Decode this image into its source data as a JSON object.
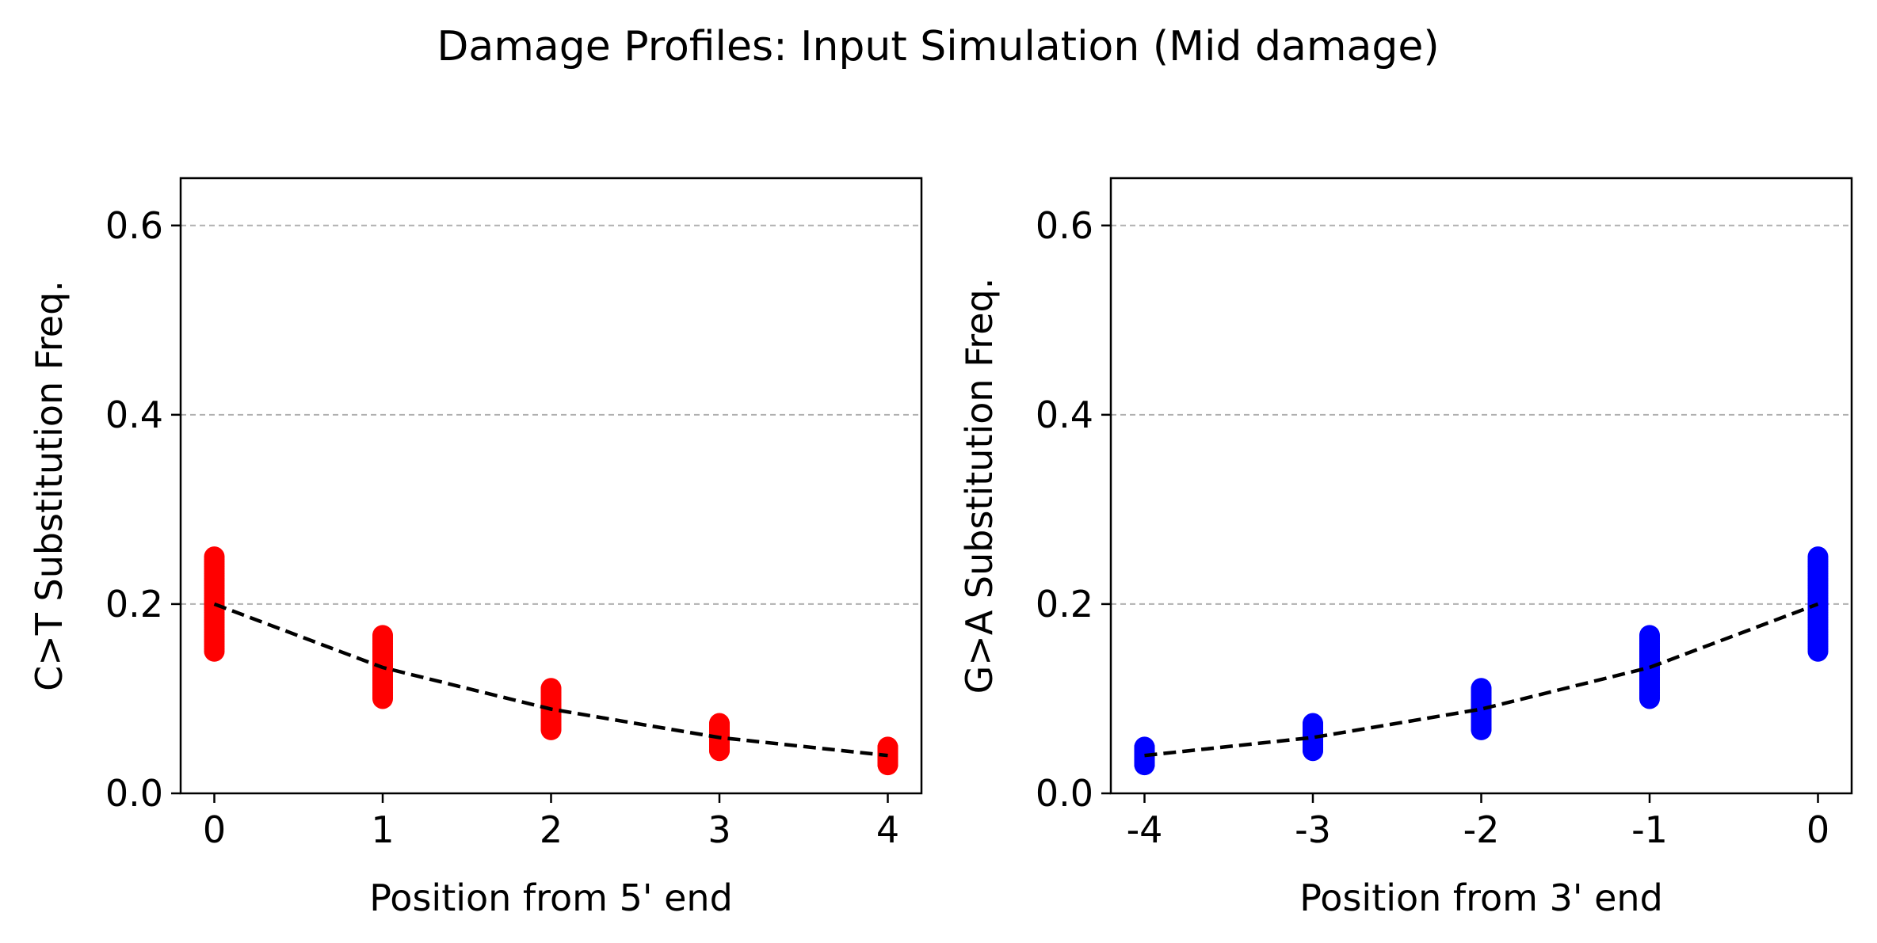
{
  "figure": {
    "title": "Damage Profiles: Input Simulation (Mid damage)"
  },
  "chart_data": [
    {
      "type": "scatter",
      "panel": "left",
      "xlabel": "Position from 5' end",
      "ylabel": "C>T Substitution Freq.",
      "xlim": [
        -0.2,
        4.2
      ],
      "ylim": [
        0.0,
        0.65
      ],
      "x_ticks": [
        0,
        1,
        2,
        3,
        4
      ],
      "x_tick_labels": [
        "0",
        "1",
        "2",
        "3",
        "4"
      ],
      "y_ticks": [
        0.0,
        0.2,
        0.4,
        0.6
      ],
      "y_tick_labels": [
        "0.0",
        "0.2",
        "0.4",
        "0.6"
      ],
      "grid": "y-dashed",
      "point_color": "#ff0000",
      "line_color": "#000000",
      "scatter_ranges": [
        {
          "x": 0,
          "y_min": 0.15,
          "y_max": 0.25
        },
        {
          "x": 1,
          "y_min": 0.1,
          "y_max": 0.167
        },
        {
          "x": 2,
          "y_min": 0.067,
          "y_max": 0.111
        },
        {
          "x": 3,
          "y_min": 0.045,
          "y_max": 0.074
        },
        {
          "x": 4,
          "y_min": 0.03,
          "y_max": 0.049
        }
      ],
      "expected_line": {
        "style": "dashed",
        "x": [
          0,
          1,
          2,
          3,
          4
        ],
        "y": [
          0.2,
          0.133,
          0.089,
          0.059,
          0.04
        ]
      }
    },
    {
      "type": "scatter",
      "panel": "right",
      "xlabel": "Position from 3' end",
      "ylabel": "G>A Substitution Freq.",
      "xlim": [
        -4.2,
        0.2
      ],
      "ylim": [
        0.0,
        0.65
      ],
      "x_ticks": [
        -4,
        -3,
        -2,
        -1,
        0
      ],
      "x_tick_labels": [
        "-4",
        "-3",
        "-2",
        "-1",
        "0"
      ],
      "y_ticks": [
        0.0,
        0.2,
        0.4,
        0.6
      ],
      "y_tick_labels": [
        "0.0",
        "0.2",
        "0.4",
        "0.6"
      ],
      "grid": "y-dashed",
      "point_color": "#0000ff",
      "line_color": "#000000",
      "scatter_ranges": [
        {
          "x": -4,
          "y_min": 0.03,
          "y_max": 0.049
        },
        {
          "x": -3,
          "y_min": 0.045,
          "y_max": 0.074
        },
        {
          "x": -2,
          "y_min": 0.067,
          "y_max": 0.111
        },
        {
          "x": -1,
          "y_min": 0.1,
          "y_max": 0.167
        },
        {
          "x": 0,
          "y_min": 0.15,
          "y_max": 0.25
        }
      ],
      "expected_line": {
        "style": "dashed",
        "x": [
          -4,
          -3,
          -2,
          -1,
          0
        ],
        "y": [
          0.04,
          0.059,
          0.089,
          0.133,
          0.2
        ]
      }
    }
  ]
}
